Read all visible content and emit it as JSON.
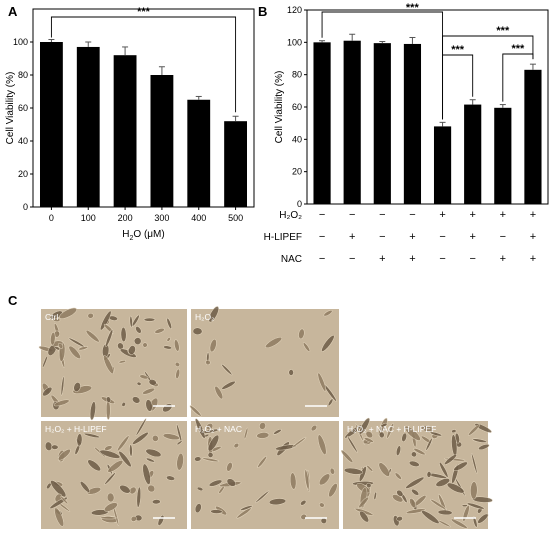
{
  "chart_data": [
    {
      "panel": "A",
      "type": "bar",
      "categories": [
        "0",
        "100",
        "200",
        "300",
        "400",
        "500"
      ],
      "values": [
        100,
        97,
        92,
        80,
        65,
        52
      ],
      "errors": [
        1.5,
        3,
        5,
        5,
        2,
        3
      ],
      "xlabel_parts": [
        "H",
        "2",
        "O",
        " (μM)"
      ],
      "ylabel": "Cell Viability (%)",
      "ylim": [
        0,
        120
      ],
      "yticks": [
        "0",
        "20",
        "40",
        "60",
        "80",
        "100"
      ],
      "bar_color": "#000000",
      "significance": [
        {
          "from": 0,
          "to": 5,
          "label": "***"
        }
      ]
    },
    {
      "panel": "B",
      "type": "bar",
      "values": [
        100,
        101,
        99.5,
        99,
        48,
        61.5,
        59.5,
        83
      ],
      "errors": [
        1,
        4,
        1,
        4,
        2.5,
        3,
        2,
        3.5
      ],
      "ylabel": "Cell Viability (%)",
      "ylim": [
        0,
        120
      ],
      "yticks": [
        "0",
        "20",
        "40",
        "60",
        "80",
        "100",
        "120"
      ],
      "bar_color": "#000000",
      "condition_rows": [
        {
          "label": "H₂O₂",
          "marks": [
            "−",
            "−",
            "−",
            "−",
            "+",
            "+",
            "+",
            "+"
          ]
        },
        {
          "label": "H-LIPEF",
          "marks": [
            "−",
            "+",
            "−",
            "+",
            "−",
            "+",
            "−",
            "+"
          ]
        },
        {
          "label": "NAC",
          "marks": [
            "−",
            "−",
            "+",
            "+",
            "−",
            "−",
            "+",
            "+"
          ]
        }
      ],
      "significance": [
        {
          "from": 0,
          "to": 4,
          "label": "***"
        },
        {
          "from": 4,
          "to": 5,
          "label": "***"
        },
        {
          "from": 4,
          "to": 7,
          "label": "***"
        },
        {
          "from": 6,
          "to": 7,
          "label": "***"
        }
      ]
    }
  ],
  "panels": {
    "a": "A",
    "b": "B",
    "c": "C"
  },
  "photos": [
    {
      "label": "Ctrl"
    },
    {
      "label": "H₂O₂"
    },
    {
      "label": ""
    },
    {
      "label": "H₂O₂ + H-LIPEF"
    },
    {
      "label": "H₂O₂ + NAC"
    },
    {
      "label": "H₂O₂ + NAC + H-LIPEF"
    }
  ]
}
